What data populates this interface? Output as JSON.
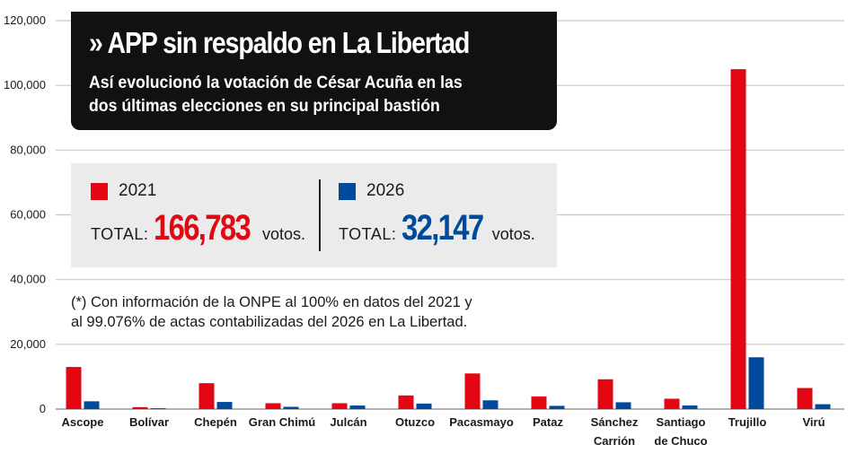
{
  "title": "» APP sin respaldo en La Libertad",
  "subtitle_line1": "Así evolucionó la votación de César Acuña en las",
  "subtitle_line2": "dos últimas elecciones en su principal bastión",
  "legend": {
    "series1_label": "2021",
    "series2_label": "2026",
    "total_label": "TOTAL:",
    "total1": "166,783",
    "total2": "32,147",
    "votes_unit": "votos."
  },
  "footnote_line1": "(*) Con información de la ONPE al 100% en datos del 2021 y",
  "footnote_line2": "al 99.076% de actas contabilizadas del 2026 en La Libertad.",
  "colors": {
    "series_2021": "#e30613",
    "series_2026": "#004a9c",
    "title_bg": "#111111",
    "legend_bg": "#ebebeb"
  },
  "chart_data": {
    "type": "bar",
    "categories": [
      [
        "Ascope"
      ],
      [
        "Bolívar"
      ],
      [
        "Chepén"
      ],
      [
        "Gran Chimú"
      ],
      [
        "Julcán"
      ],
      [
        "Otuzco"
      ],
      [
        "Pacasmayo"
      ],
      [
        "Pataz"
      ],
      [
        "Sánchez",
        "Carrión"
      ],
      [
        "Santiago",
        "de Chuco"
      ],
      [
        "Trujillo"
      ],
      [
        "Virú"
      ]
    ],
    "series": [
      {
        "name": "2021",
        "color": "#e30613",
        "values": [
          13000,
          600,
          8000,
          1800,
          1800,
          4200,
          11000,
          3900,
          9200,
          3200,
          105000,
          6500
        ]
      },
      {
        "name": "2026",
        "color": "#004a9c",
        "values": [
          2400,
          250,
          2200,
          700,
          1100,
          1700,
          2700,
          1000,
          2100,
          1100,
          16000,
          1500
        ]
      }
    ],
    "yticks": [
      "0",
      "20,000",
      "40,000",
      "60,000",
      "80,000",
      "100,000",
      "120,000"
    ],
    "ylim": [
      0,
      120000
    ],
    "grid": true
  }
}
